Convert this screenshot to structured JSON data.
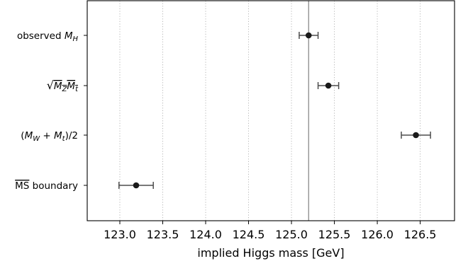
{
  "chart_data": {
    "type": "scatter",
    "xlabel": "implied Higgs mass [GeV]",
    "xlim": [
      122.62,
      126.9
    ],
    "xticks": [
      123.0,
      123.5,
      124.0,
      124.5,
      125.0,
      125.5,
      126.0,
      126.5
    ],
    "xtick_labels": [
      "123.0",
      "123.5",
      "124.0",
      "124.5",
      "125.0",
      "125.5",
      "126.0",
      "126.5"
    ],
    "grid": "vertical dotted",
    "reference_line": 125.2,
    "categories": [
      {
        "label_html": "observed <i>M</i><sub><i>H</i></sub>",
        "value": 125.2,
        "err": 0.11
      },
      {
        "label_html": "<tspan font-size=\"16\">√</tspan><tspan text-decoration=\"overline\"><i>M</i><sub><i>Z</i></sub><i>M</i><sub><i>t</i></sub></tspan>",
        "value": 125.43,
        "err": 0.12
      },
      {
        "label_html": "(<i>M</i><sub><i>W</i></sub> + <i>M</i><sub><i>t</i></sub>)/2",
        "value": 126.45,
        "err": 0.17
      },
      {
        "label_html": "<tspan text-decoration=\"overline\">MS</tspan> boundary",
        "value": 123.19,
        "err": 0.2
      }
    ],
    "colors": {
      "marker": "#1a1a1a",
      "errorbar": "#4d4d4d",
      "grid": "#b0b0b0",
      "refline": "#808080"
    }
  }
}
